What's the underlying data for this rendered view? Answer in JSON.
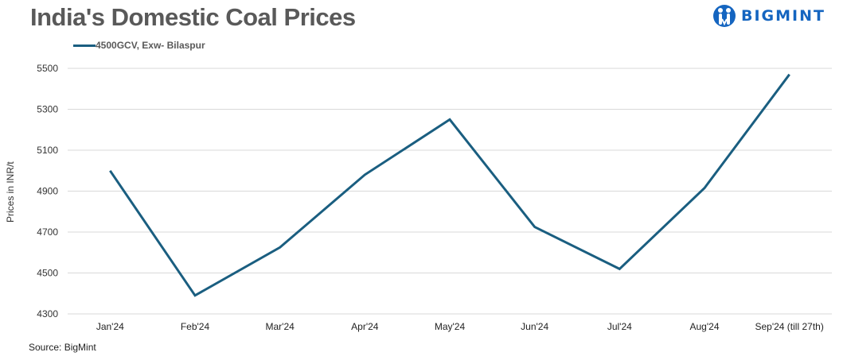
{
  "header": {
    "title": "India's Domestic Coal Prices",
    "logo_text": "BIGMINT",
    "logo_icon": "bigmint-people-icon"
  },
  "legend": {
    "items": [
      {
        "label": "4500GCV, Exw- Bilaspur",
        "color": "#1a5e80"
      }
    ]
  },
  "axis": {
    "ylabel": "Prices in INR/t"
  },
  "footer": {
    "source": "Source: BigMint"
  },
  "colors": {
    "line": "#1a5e80",
    "grid": "#d9d9d9",
    "title": "#595959",
    "logo": "#1565c0"
  },
  "chart_data": {
    "type": "line",
    "title": "India's Domestic Coal Prices",
    "xlabel": "",
    "ylabel": "Prices in INR/t",
    "categories": [
      "Jan'24",
      "Feb'24",
      "Mar'24",
      "Apr'24",
      "May'24",
      "Jun'24",
      "Jul'24",
      "Aug'24",
      "Sep'24 (till 27th)"
    ],
    "series": [
      {
        "name": "4500GCV, Exw- Bilaspur",
        "values": [
          5000,
          4390,
          4625,
          4980,
          5250,
          4725,
          4520,
          4915,
          5470
        ]
      }
    ],
    "ylim": [
      4300,
      5500
    ],
    "yticks": [
      4300,
      4500,
      4700,
      4900,
      5100,
      5300,
      5500
    ],
    "grid": true,
    "legend_position": "top-left"
  }
}
